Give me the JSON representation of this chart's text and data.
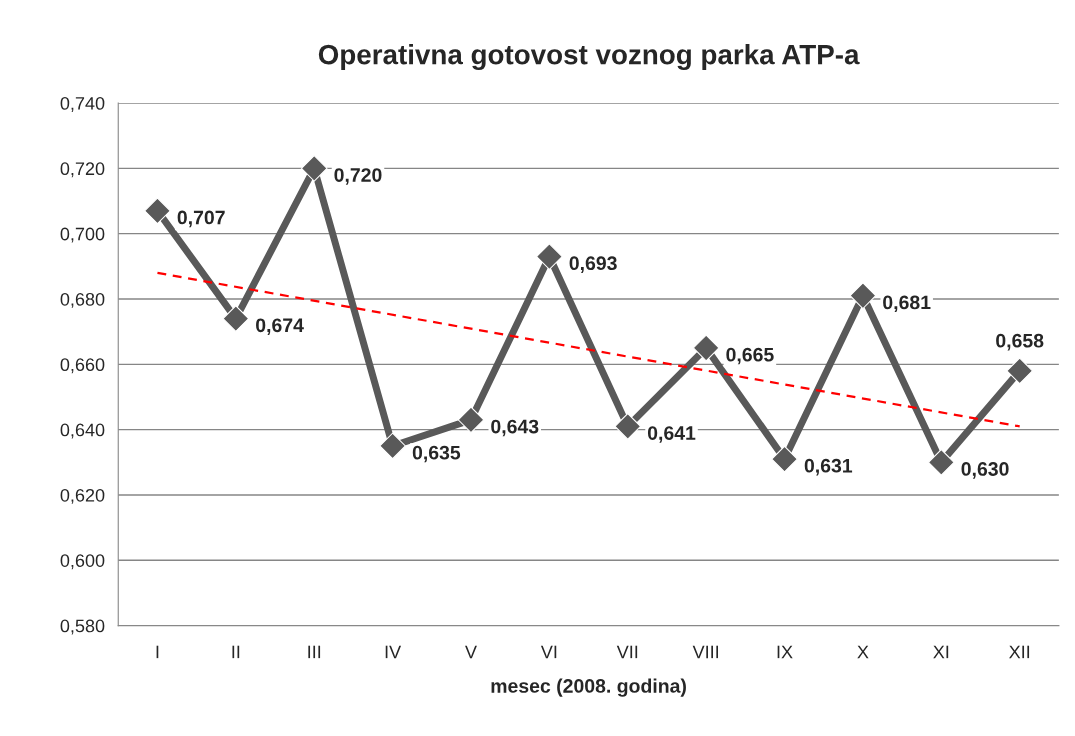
{
  "chart_data": {
    "type": "line",
    "title": "Operativna gotovost voznog parka ATP-a",
    "xlabel": "mesec (2008. godina)",
    "categories": [
      "I",
      "II",
      "III",
      "IV",
      "V",
      "VI",
      "VII",
      "VIII",
      "IX",
      "X",
      "XI",
      "XII"
    ],
    "series": [
      {
        "color": "#595959",
        "values": [
          0.707,
          0.674,
          0.72,
          0.635,
          0.643,
          0.693,
          0.641,
          0.665,
          0.631,
          0.681,
          0.63,
          0.658
        ],
        "marker": "diamond",
        "line_style": "solid",
        "data_labels": true,
        "value_labels": [
          "0,707",
          "0,674",
          "0,720",
          "0,635",
          "0,643",
          "0,693",
          "0,641",
          "0,665",
          "0,631",
          "0,681",
          "0,630",
          "0,658"
        ]
      },
      {
        "type": "line",
        "color": "#ff0000",
        "x": [
          "I",
          "XII"
        ],
        "values": [
          0.688,
          0.641
        ],
        "marker": "none",
        "line_style": "dashed"
      }
    ],
    "ylim": [
      0.58,
      0.74
    ],
    "yticks": [
      {
        "value": 0.58,
        "label": "0,580"
      },
      {
        "value": 0.6,
        "label": "0,600"
      },
      {
        "value": 0.62,
        "label": "0,620"
      },
      {
        "value": 0.64,
        "label": "0,640"
      },
      {
        "value": 0.66,
        "label": "0,660"
      },
      {
        "value": 0.68,
        "label": "0,680"
      },
      {
        "value": 0.7,
        "label": "0,700"
      },
      {
        "value": 0.72,
        "label": "0,720"
      },
      {
        "value": 0.74,
        "label": "0,740"
      }
    ],
    "grid": "y",
    "legend": false
  }
}
